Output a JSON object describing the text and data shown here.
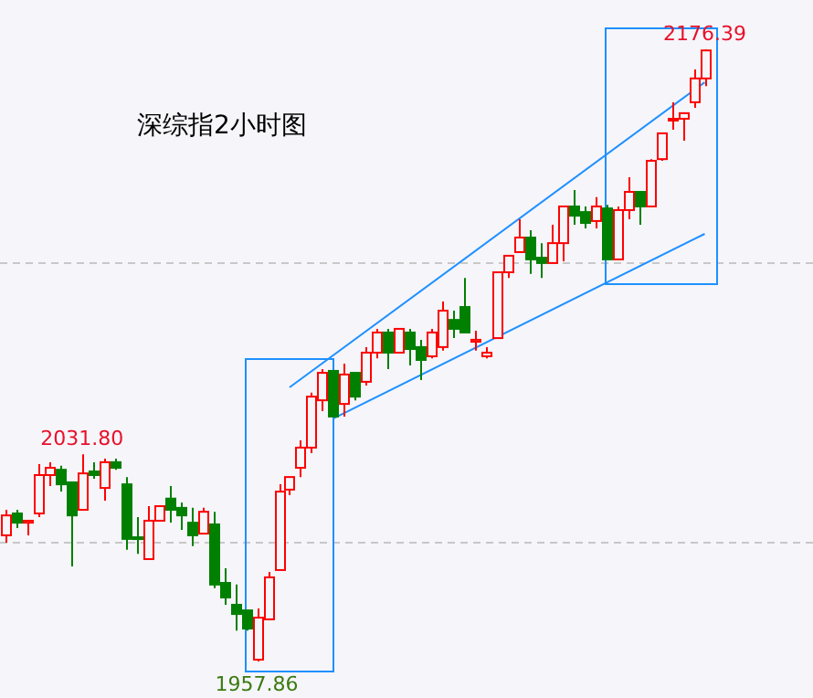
{
  "chart_data": {
    "type": "candlestick",
    "title": "深综指2小时图",
    "categories": [
      null,
      null,
      null,
      null,
      null,
      null,
      null,
      null,
      null,
      null,
      null,
      null,
      null,
      null,
      null,
      null,
      null,
      null,
      null,
      null,
      null,
      null,
      null,
      null,
      null,
      null,
      null,
      null,
      null,
      null,
      null,
      null,
      null,
      null,
      null,
      null,
      null,
      null,
      null,
      null,
      null,
      null,
      null,
      null,
      null,
      null,
      null,
      null,
      null,
      null,
      null,
      null,
      null,
      null,
      null,
      null,
      null,
      null,
      null,
      null,
      null,
      null,
      null,
      null,
      null
    ],
    "ohlc": [
      [
        2002.9,
        2012.0,
        2000.3,
        2010.0
      ],
      [
        2010.7,
        2012.0,
        2005.5,
        2007.4
      ],
      [
        2007.4,
        2008.1,
        2002.9,
        2008.1
      ],
      [
        2010.7,
        2028.3,
        2009.4,
        2024.4
      ],
      [
        2024.4,
        2029.0,
        2020.5,
        2027.0
      ],
      [
        2026.3,
        2027.7,
        2018.5,
        2021.1
      ],
      [
        2021.8,
        2021.8,
        1991.8,
        2010.0
      ],
      [
        2012.0,
        2031.8,
        2012.0,
        2025.0
      ],
      [
        2025.7,
        2029.0,
        2023.1,
        2024.4
      ],
      [
        2019.8,
        2030.3,
        2015.3,
        2029.0
      ],
      [
        2029.0,
        2030.3,
        2026.3,
        2027.0
      ],
      [
        2021.1,
        2023.7,
        1997.7,
        2001.6
      ],
      [
        2002.2,
        2009.4,
        1996.3,
        2001.6
      ],
      [
        1994.4,
        2013.3,
        1994.4,
        2008.1
      ],
      [
        2008.1,
        2013.3,
        2008.1,
        2013.3
      ],
      [
        2016.0,
        2020.5,
        2007.4,
        2012.0
      ],
      [
        2012.7,
        2014.6,
        2004.8,
        2010.0
      ],
      [
        2007.4,
        2012.7,
        1999.0,
        2002.9
      ],
      [
        2003.5,
        2012.7,
        2003.5,
        2011.3
      ],
      [
        2006.8,
        2011.3,
        1984.0,
        1985.3
      ],
      [
        1985.9,
        1991.1,
        1978.1,
        1980.7
      ],
      [
        1978.1,
        1985.3,
        1968.9,
        1974.8
      ],
      [
        1976.1,
        1976.1,
        1968.9,
        1969.6
      ],
      [
        1958.5,
        1976.8,
        1957.86,
        1973.5
      ],
      [
        1972.9,
        1989.8,
        1972.9,
        1987.9
      ],
      [
        1990.5,
        2021.1,
        1990.5,
        2018.5
      ],
      [
        2019.2,
        2023.7,
        2017.2,
        2023.7
      ],
      [
        2027.0,
        2036.8,
        2023.7,
        2034.2
      ],
      [
        2034.2,
        2053.8,
        2032.2,
        2052.4
      ],
      [
        2051.1,
        2062.2,
        2047.2,
        2060.9
      ],
      [
        2061.6,
        2061.6,
        2045.3,
        2045.3
      ],
      [
        2049.8,
        2064.2,
        2045.3,
        2060.3
      ],
      [
        2060.9,
        2060.9,
        2051.1,
        2052.4
      ],
      [
        2057.7,
        2070.1,
        2056.4,
        2068.1
      ],
      [
        2068.1,
        2076.6,
        2066.1,
        2075.3
      ],
      [
        2075.3,
        2076.6,
        2062.2,
        2068.1
      ],
      [
        2068.1,
        2076.6,
        2068.1,
        2076.6
      ],
      [
        2075.3,
        2076.6,
        2063.5,
        2069.4
      ],
      [
        2070.1,
        2072.7,
        2058.3,
        2065.5
      ],
      [
        2066.8,
        2076.6,
        2066.1,
        2075.3
      ],
      [
        2070.1,
        2086.4,
        2068.8,
        2083.1
      ],
      [
        2079.8,
        2083.1,
        2073.3,
        2076.6
      ],
      [
        2084.4,
        2094.8,
        2075.3,
        2075.3
      ],
      [
        2072.0,
        2075.9,
        2068.8,
        2072.7
      ],
      [
        2066.8,
        2070.1,
        2066.1,
        2068.1
      ],
      [
        2073.3,
        2096.8,
        2073.3,
        2096.8
      ],
      [
        2096.8,
        2102.7,
        2094.8,
        2102.7
      ],
      [
        2104.0,
        2115.7,
        2104.0,
        2109.2
      ],
      [
        2109.2,
        2111.8,
        2096.2,
        2101.4
      ],
      [
        2102.0,
        2107.2,
        2094.8,
        2100.1
      ],
      [
        2100.1,
        2113.8,
        2100.1,
        2107.2
      ],
      [
        2107.2,
        2120.3,
        2100.7,
        2120.3
      ],
      [
        2120.3,
        2126.2,
        2113.8,
        2117.0
      ],
      [
        2118.3,
        2120.3,
        2112.5,
        2114.4
      ],
      [
        2115.1,
        2123.6,
        2112.5,
        2120.3
      ],
      [
        2119.6,
        2120.9,
        2101.4,
        2101.4
      ],
      [
        2101.4,
        2120.3,
        2101.4,
        2119.0
      ],
      [
        2119.0,
        2130.7,
        2115.7,
        2125.5
      ],
      [
        2125.5,
        2125.5,
        2113.8,
        2120.3
      ],
      [
        2120.3,
        2137.2,
        2120.3,
        2136.6
      ],
      [
        2137.2,
        2146.4,
        2136.6,
        2146.4
      ],
      [
        2151.0,
        2157.5,
        2147.7,
        2151.6
      ],
      [
        2151.6,
        2153.6,
        2143.8,
        2153.6
      ],
      [
        2157.5,
        2169.2,
        2155.5,
        2166.0
      ],
      [
        2166.0,
        2176.39,
        2163.3,
        2176.0
      ]
    ],
    "colors": [
      "#ff0000",
      "#008000",
      "#ff0000",
      "#ff0000",
      "#ff0000",
      "#008000",
      "#008000",
      "#ff0000",
      "#008000",
      "#ff0000",
      "#008000",
      "#008000",
      "#008000",
      "#ff0000",
      "#ff0000",
      "#008000",
      "#008000",
      "#008000",
      "#ff0000",
      "#008000",
      "#008000",
      "#008000",
      "#008000",
      "#ff0000",
      "#ff0000",
      "#ff0000",
      "#ff0000",
      "#ff0000",
      "#ff0000",
      "#ff0000",
      "#008000",
      "#ff0000",
      "#008000",
      "#ff0000",
      "#ff0000",
      "#008000",
      "#ff0000",
      "#008000",
      "#008000",
      "#ff0000",
      "#ff0000",
      "#008000",
      "#008000",
      "#ff0000",
      "#ff0000",
      "#ff0000",
      "#ff0000",
      "#ff0000",
      "#008000",
      "#008000",
      "#ff0000",
      "#ff0000",
      "#008000",
      "#008000",
      "#ff0000",
      "#008000",
      "#ff0000",
      "#ff0000",
      "#008000",
      "#ff0000",
      "#ff0000",
      "#ff0000",
      "#ff0000",
      "#ff0000",
      "#ff0000"
    ],
    "series": [
      {
        "type": "line",
        "color": "#1e90ff",
        "values": [
          null,
          null,
          null,
          null,
          null,
          null,
          null,
          null,
          null,
          null,
          null,
          null,
          null,
          null,
          null,
          null,
          null,
          null,
          null,
          null,
          null,
          null,
          null,
          null,
          null,
          null,
          2055.7,
          null,
          null,
          null,
          null,
          null,
          null,
          null,
          null,
          null,
          null,
          null,
          null,
          null,
          null,
          null,
          null,
          null,
          null,
          null,
          null,
          null,
          null,
          null,
          null,
          null,
          null,
          null,
          null,
          null,
          null,
          null,
          null,
          null,
          null,
          null,
          null,
          null,
          2164.6
        ]
      },
      {
        "type": "line",
        "color": "#1e90ff",
        "values": [
          null,
          null,
          null,
          null,
          null,
          null,
          null,
          null,
          null,
          null,
          null,
          null,
          null,
          null,
          null,
          null,
          null,
          null,
          null,
          null,
          null,
          null,
          null,
          null,
          null,
          null,
          null,
          null,
          null,
          null,
          2044.6,
          null,
          null,
          null,
          null,
          null,
          null,
          null,
          null,
          null,
          null,
          null,
          null,
          null,
          null,
          null,
          null,
          null,
          null,
          null,
          null,
          null,
          null,
          null,
          null,
          null,
          null,
          null,
          null,
          null,
          null,
          null,
          null,
          null,
          2110.5
        ]
      }
    ],
    "ref_lines": [
      {
        "axis": "y",
        "value": 2100.1,
        "color": "#c8c8c8",
        "line_style": "dashed"
      },
      {
        "axis": "y",
        "value": 2000.3,
        "color": "#c8c8c8",
        "line_style": "dashed"
      }
    ],
    "annotations": [
      {
        "text": "2031.80",
        "y": 2031.8
      },
      {
        "text": "1957.86",
        "y": 1957.86
      },
      {
        "text": "2176.39",
        "y": 2176.39
      }
    ]
  }
}
